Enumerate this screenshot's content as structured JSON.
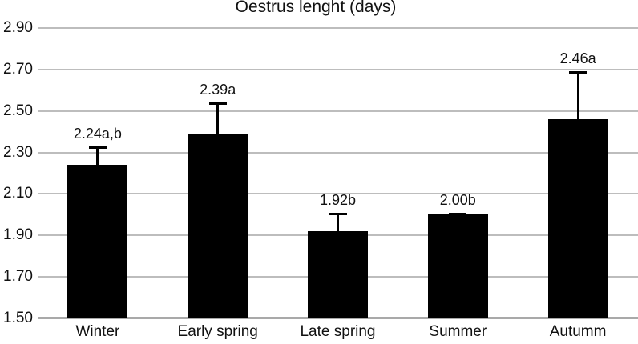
{
  "chart_data": {
    "type": "bar",
    "title": "Oestrus lenght (days)",
    "categories": [
      "Winter",
      "Early spring",
      "Late spring",
      "Summer",
      "Autumm"
    ],
    "values": [
      2.24,
      2.39,
      1.92,
      2.0,
      2.46
    ],
    "value_labels": [
      "2.24a,b",
      "2.39a",
      "1.92b",
      "2.00b",
      "2.46a"
    ],
    "error_upper": [
      0.09,
      0.15,
      0.09,
      0.01,
      0.23
    ],
    "yticks": [
      "2.90",
      "2.70",
      "2.50",
      "2.30",
      "2.10",
      "1.90",
      "1.70",
      "1.50"
    ],
    "ylim": [
      1.5,
      2.9
    ],
    "ytick_step": 0.2,
    "xlabel": "",
    "ylabel": "",
    "grid": true,
    "legend": false,
    "bar_color": "#000000",
    "gridline_color": "#bdbdbd",
    "axis_color": "#a9a9a9",
    "text_color": "#111111",
    "background_color": "#ffffff"
  }
}
